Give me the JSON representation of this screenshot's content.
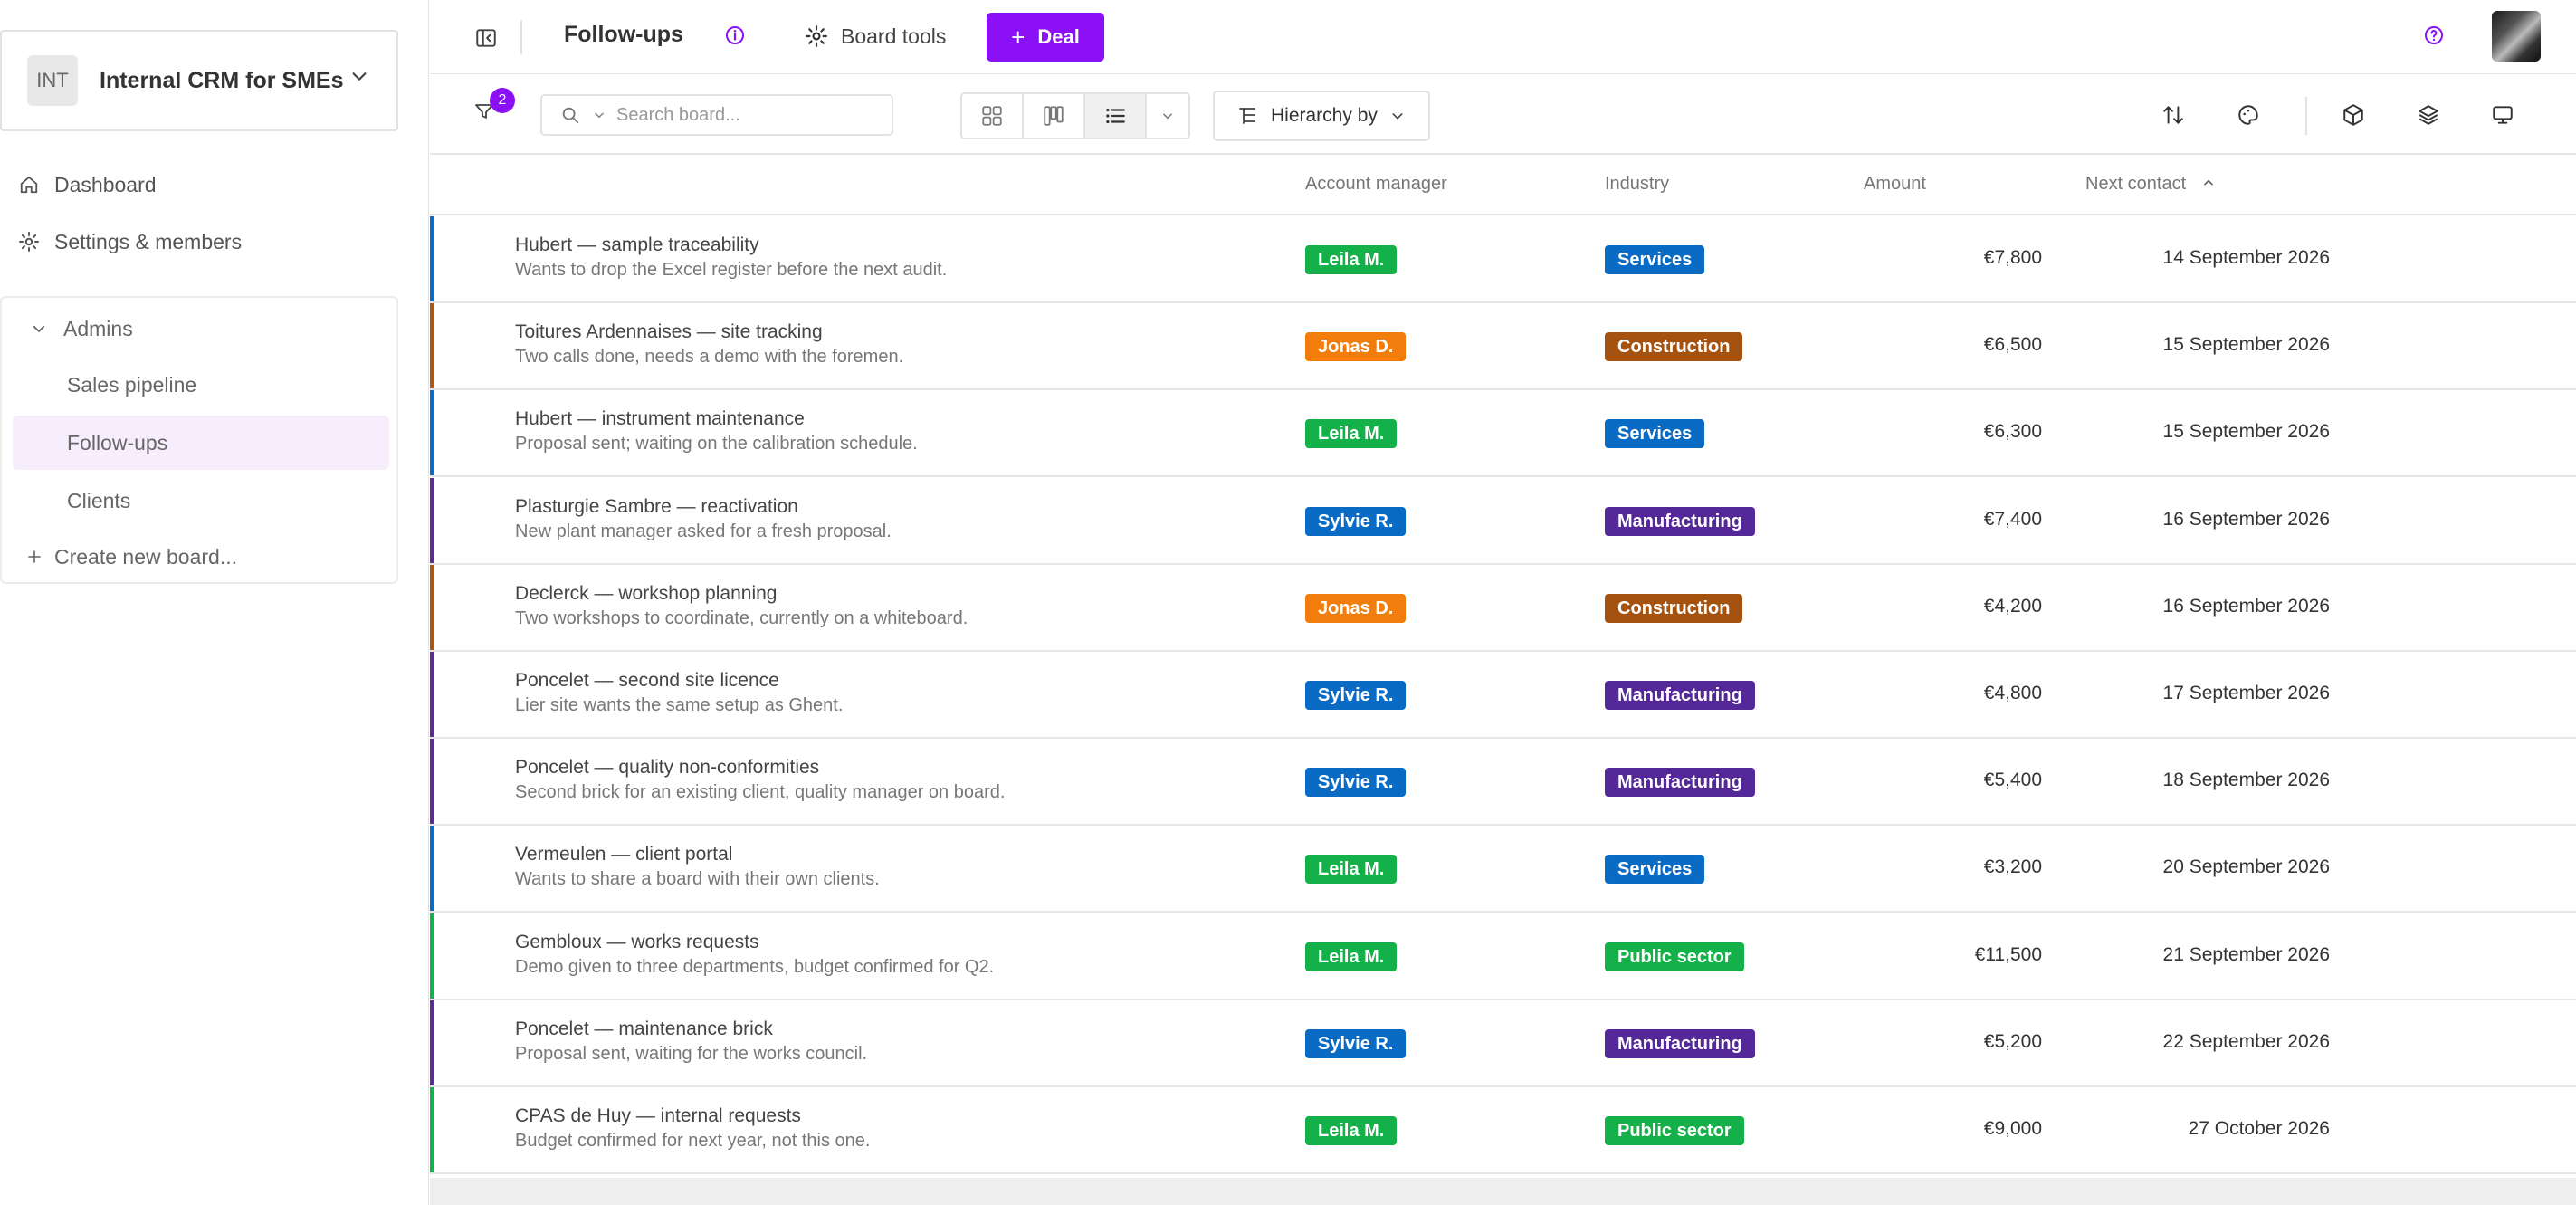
{
  "workspace": {
    "badge": "INT",
    "name": "Internal CRM for SMEs"
  },
  "nav": {
    "dashboard": "Dashboard",
    "settings": "Settings & members"
  },
  "boards": {
    "group": "Admins",
    "items": [
      {
        "label": "Sales pipeline",
        "active": false
      },
      {
        "label": "Follow-ups",
        "active": true
      },
      {
        "label": "Clients",
        "active": false
      }
    ],
    "create": "Create new board..."
  },
  "header": {
    "title": "Follow-ups",
    "tools_label": "Board tools",
    "deal_label": "Deal"
  },
  "toolbar": {
    "filter_count": "2",
    "search_placeholder": "Search board...",
    "hierarchy_label": "Hierarchy by"
  },
  "table": {
    "columns": {
      "manager": "Account manager",
      "industry": "Industry",
      "amount": "Amount",
      "next_contact": "Next contact"
    },
    "rows": [
      {
        "title": "Hubert — sample traceability",
        "desc": "Wants to drop the Excel register before the next audit.",
        "manager": "Leila M.",
        "industry": "Services",
        "amount": "€7,800",
        "date": "14 September 2026",
        "color": "#0a6bc4"
      },
      {
        "title": "Toitures Ardennaises — site tracking",
        "desc": "Two calls done, needs a demo with the foremen.",
        "manager": "Jonas D.",
        "industry": "Construction",
        "amount": "€6,500",
        "date": "15 September 2026",
        "color": "#b0560f"
      },
      {
        "title": "Hubert — instrument maintenance",
        "desc": "Proposal sent; waiting on the calibration schedule.",
        "manager": "Leila M.",
        "industry": "Services",
        "amount": "€6,300",
        "date": "15 September 2026",
        "color": "#0a6bc4"
      },
      {
        "title": "Plasturgie Sambre — reactivation",
        "desc": "New plant manager asked for a fresh proposal.",
        "manager": "Sylvie R.",
        "industry": "Manufacturing",
        "amount": "€7,400",
        "date": "16 September 2026",
        "color": "#5a2d96"
      },
      {
        "title": "Declerck — workshop planning",
        "desc": "Two workshops to coordinate, currently on a whiteboard.",
        "manager": "Jonas D.",
        "industry": "Construction",
        "amount": "€4,200",
        "date": "16 September 2026",
        "color": "#b0560f"
      },
      {
        "title": "Poncelet — second site licence",
        "desc": "Lier site wants the same setup as Ghent.",
        "manager": "Sylvie R.",
        "industry": "Manufacturing",
        "amount": "€4,800",
        "date": "17 September 2026",
        "color": "#5a2d96"
      },
      {
        "title": "Poncelet — quality non-conformities",
        "desc": "Second brick for an existing client, quality manager on board.",
        "manager": "Sylvie R.",
        "industry": "Manufacturing",
        "amount": "€5,400",
        "date": "18 September 2026",
        "color": "#5a2d96"
      },
      {
        "title": "Vermeulen — client portal",
        "desc": "Wants to share a board with their own clients.",
        "manager": "Leila M.",
        "industry": "Services",
        "amount": "€3,200",
        "date": "20 September 2026",
        "color": "#0a6bc4"
      },
      {
        "title": "Gembloux — works requests",
        "desc": "Demo given to three departments, budget confirmed for Q2.",
        "manager": "Leila M.",
        "industry": "Public sector",
        "amount": "€11,500",
        "date": "21 September 2026",
        "color": "#17b04c"
      },
      {
        "title": "Poncelet — maintenance brick",
        "desc": "Proposal sent, waiting for the works council.",
        "manager": "Sylvie R.",
        "industry": "Manufacturing",
        "amount": "€5,200",
        "date": "22 September 2026",
        "color": "#5a2d96"
      },
      {
        "title": "CPAS de Huy — internal requests",
        "desc": "Budget confirmed for next year, not this one.",
        "manager": "Leila M.",
        "industry": "Public sector",
        "amount": "€9,000",
        "date": "27 October 2026",
        "color": "#17b04c"
      }
    ]
  },
  "colors": {
    "accent": "#8b10f5",
    "manager_tags": {
      "Leila M.": "#14b14a",
      "Jonas D.": "#f07d0c",
      "Sylvie R.": "#0a6bc4"
    },
    "industry_tags": {
      "Services": "#0a6bc4",
      "Construction": "#a6520f",
      "Manufacturing": "#55289a",
      "Public sector": "#14b14a"
    }
  }
}
